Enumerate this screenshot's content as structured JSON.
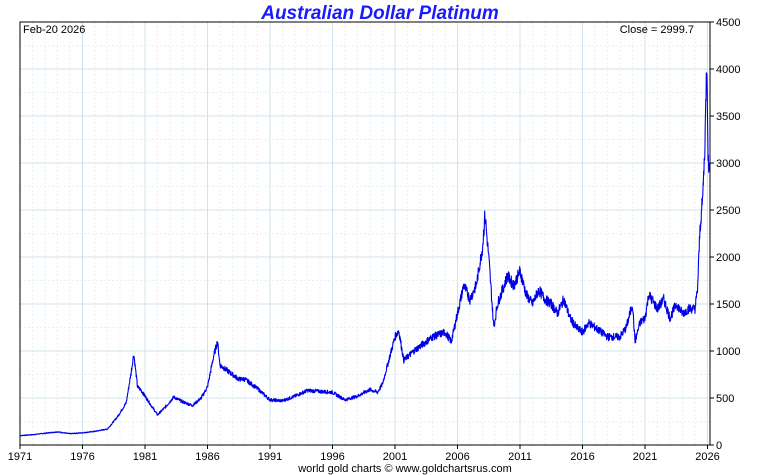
{
  "chart_data": {
    "type": "line",
    "title": "Australian Dollar Platinum",
    "date_label": "Feb-20  2026",
    "close_label": "Close = 2999.7",
    "credit": "world gold charts © www.goldchartsrus.com",
    "ylim": [
      0,
      4500
    ],
    "xlim": [
      1971,
      2026.2
    ],
    "y_ticks": [
      0,
      500,
      1000,
      1500,
      2000,
      2500,
      3000,
      3500,
      4000,
      4500
    ],
    "x_ticks": [
      1971,
      1976,
      1981,
      1986,
      1991,
      1996,
      2001,
      2006,
      2011,
      2016,
      2021,
      2026
    ],
    "grid": true,
    "line_color": "#0000e6",
    "title_color": "#1a1aff",
    "series": [
      {
        "x": [
          1971,
          1972,
          1973,
          1974,
          1975,
          1976,
          1977,
          1978,
          1978.8,
          1979.5,
          1979.9,
          1980.1,
          1980.4,
          1980.7,
          1981,
          1981.5,
          1982,
          1982.6,
          1983.3,
          1984,
          1984.8,
          1985.5,
          1986,
          1986.5,
          1986.8,
          1987,
          1987.5,
          1988,
          1988.5,
          1989,
          1990,
          1991,
          1992,
          1993,
          1994,
          1995,
          1996,
          1997,
          1998,
          1999,
          1999.6,
          2000,
          2000.6,
          2001,
          2001.3,
          2001.7,
          2002.5,
          2003,
          2004,
          2005,
          2005.5,
          2006,
          2006.5,
          2007,
          2007.5,
          2008,
          2008.2,
          2008.5,
          2008.9,
          2009.2,
          2009.6,
          2010,
          2010.5,
          2011,
          2011.5,
          2012,
          2012.5,
          2013,
          2013.5,
          2014,
          2014.5,
          2015,
          2015.5,
          2016,
          2016.5,
          2017,
          2018,
          2019,
          2019.5,
          2020,
          2020.2,
          2020.6,
          2021,
          2021.3,
          2022,
          2022.5,
          2023,
          2023.5,
          2024,
          2024.5,
          2025,
          2025.2,
          2025.4,
          2025.6,
          2025.8,
          2025.9,
          2025.95,
          2026.0,
          2026.05,
          2026.1,
          2026.15
        ],
        "y": [
          100,
          110,
          125,
          140,
          120,
          130,
          145,
          170,
          300,
          450,
          780,
          970,
          620,
          580,
          520,
          420,
          320,
          400,
          510,
          460,
          420,
          500,
          620,
          950,
          1100,
          850,
          800,
          750,
          700,
          700,
          600,
          480,
          470,
          520,
          580,
          570,
          560,
          480,
          520,
          590,
          560,
          650,
          950,
          1150,
          1220,
          900,
          1000,
          1050,
          1150,
          1200,
          1100,
          1400,
          1700,
          1550,
          1700,
          2100,
          2450,
          2000,
          1250,
          1500,
          1650,
          1800,
          1700,
          1850,
          1600,
          1500,
          1650,
          1550,
          1500,
          1400,
          1550,
          1350,
          1250,
          1200,
          1300,
          1250,
          1150,
          1150,
          1250,
          1500,
          1100,
          1300,
          1350,
          1600,
          1450,
          1550,
          1350,
          1500,
          1400,
          1450,
          1450,
          1650,
          2300,
          2600,
          3200,
          3900,
          4050,
          3600,
          3100,
          2900,
          3000
        ]
      }
    ]
  }
}
